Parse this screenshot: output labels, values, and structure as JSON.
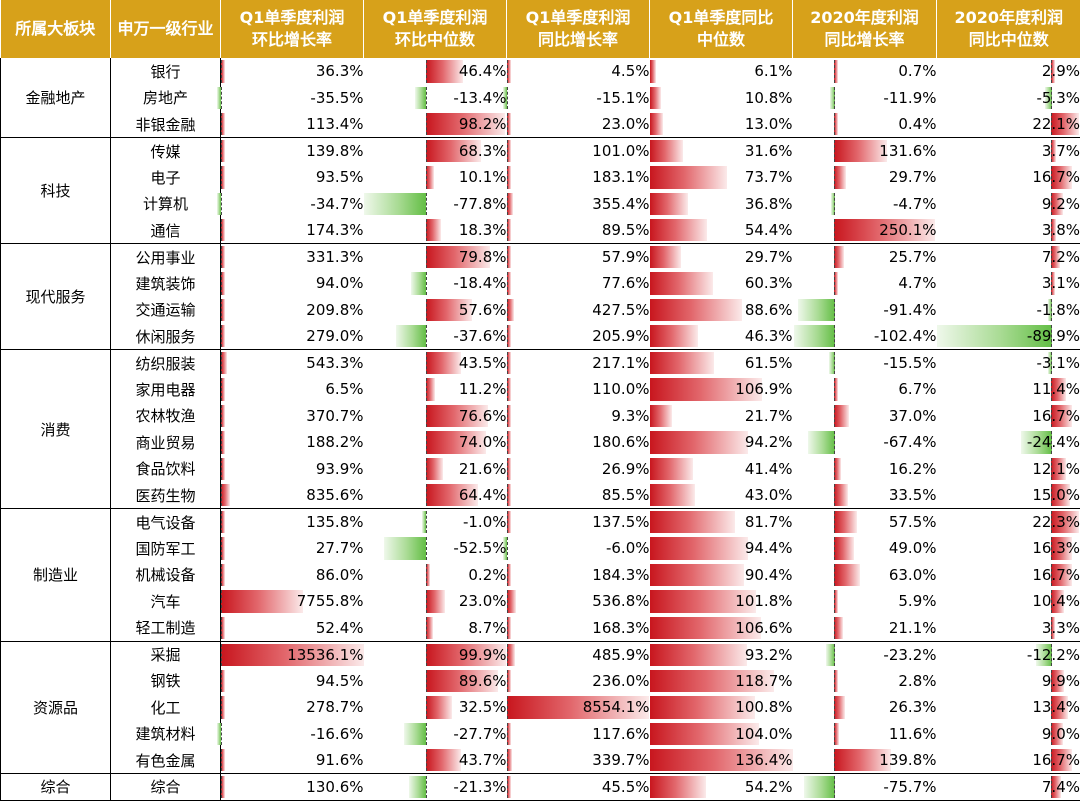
{
  "headers": [
    "所属大板块",
    "申万一级行业",
    "Q1单季度利润\n环比增长率",
    "Q1单季度利润\n环比中位数",
    "Q1单季度利润\n同比增长率",
    "Q1单季度同比\n中位数",
    "2020年度利润\n同比增长率",
    "2020年度利润\n同比中位数"
  ],
  "colors": {
    "header_bg": "#d7a11a",
    "positive_bar": "#c8161e",
    "negative_bar": "#63be45"
  },
  "groups": [
    {
      "sector": "金融地产",
      "rows": [
        {
          "industry": "银行",
          "values": [
            36.3,
            46.4,
            4.5,
            6.1,
            0.7,
            2.9
          ],
          "labels": [
            "36.3%",
            "46.4%",
            "4.5%",
            "6.1%",
            "0.7%",
            "2.9%"
          ]
        },
        {
          "industry": "房地产",
          "values": [
            -35.5,
            -13.4,
            -15.1,
            10.8,
            -11.9,
            -5.3
          ],
          "labels": [
            "-35.5%",
            "-13.4%",
            "-15.1%",
            "10.8%",
            "-11.9%",
            "-5.3%"
          ]
        },
        {
          "industry": "非银金融",
          "values": [
            113.4,
            98.2,
            23.0,
            13.0,
            0.4,
            22.1
          ],
          "labels": [
            "113.4%",
            "98.2%",
            "23.0%",
            "13.0%",
            "0.4%",
            "22.1%"
          ]
        }
      ]
    },
    {
      "sector": "科技",
      "rows": [
        {
          "industry": "传媒",
          "values": [
            139.8,
            68.3,
            101.0,
            31.6,
            131.6,
            3.7
          ],
          "labels": [
            "139.8%",
            "68.3%",
            "101.0%",
            "31.6%",
            "131.6%",
            "3.7%"
          ]
        },
        {
          "industry": "电子",
          "values": [
            93.5,
            10.1,
            183.1,
            73.7,
            29.7,
            16.7
          ],
          "labels": [
            "93.5%",
            "10.1%",
            "183.1%",
            "73.7%",
            "29.7%",
            "16.7%"
          ]
        },
        {
          "industry": "计算机",
          "values": [
            -34.7,
            -77.8,
            355.4,
            36.8,
            -4.7,
            9.2
          ],
          "labels": [
            "-34.7%",
            "-77.8%",
            "355.4%",
            "36.8%",
            "-4.7%",
            "9.2%"
          ]
        },
        {
          "industry": "通信",
          "values": [
            174.3,
            18.3,
            89.5,
            54.4,
            250.1,
            3.8
          ],
          "labels": [
            "174.3%",
            "18.3%",
            "89.5%",
            "54.4%",
            "250.1%",
            "3.8%"
          ]
        }
      ]
    },
    {
      "sector": "现代服务",
      "rows": [
        {
          "industry": "公用事业",
          "values": [
            331.3,
            79.8,
            57.9,
            29.7,
            25.7,
            7.2
          ],
          "labels": [
            "331.3%",
            "79.8%",
            "57.9%",
            "29.7%",
            "25.7%",
            "7.2%"
          ]
        },
        {
          "industry": "建筑装饰",
          "values": [
            94.0,
            -18.4,
            77.6,
            60.3,
            4.7,
            3.1
          ],
          "labels": [
            "94.0%",
            "-18.4%",
            "77.6%",
            "60.3%",
            "4.7%",
            "3.1%"
          ]
        },
        {
          "industry": "交通运输",
          "values": [
            209.8,
            57.6,
            427.5,
            88.6,
            -91.4,
            -1.8
          ],
          "labels": [
            "209.8%",
            "57.6%",
            "427.5%",
            "88.6%",
            "-91.4%",
            "-1.8%"
          ]
        },
        {
          "industry": "休闲服务",
          "values": [
            279.0,
            -37.6,
            205.9,
            46.3,
            -102.4,
            -89.9
          ],
          "labels": [
            "279.0%",
            "-37.6%",
            "205.9%",
            "46.3%",
            "-102.4%",
            "-89.9%"
          ]
        }
      ]
    },
    {
      "sector": "消费",
      "rows": [
        {
          "industry": "纺织服装",
          "values": [
            543.3,
            43.5,
            217.1,
            61.5,
            -15.5,
            -3.1
          ],
          "labels": [
            "543.3%",
            "43.5%",
            "217.1%",
            "61.5%",
            "-15.5%",
            "-3.1%"
          ]
        },
        {
          "industry": "家用电器",
          "values": [
            6.5,
            11.2,
            110.0,
            106.9,
            6.7,
            11.4
          ],
          "labels": [
            "6.5%",
            "11.2%",
            "110.0%",
            "106.9%",
            "6.7%",
            "11.4%"
          ]
        },
        {
          "industry": "农林牧渔",
          "values": [
            370.7,
            76.6,
            9.3,
            21.7,
            37.0,
            16.7
          ],
          "labels": [
            "370.7%",
            "76.6%",
            "9.3%",
            "21.7%",
            "37.0%",
            "16.7%"
          ]
        },
        {
          "industry": "商业贸易",
          "values": [
            188.2,
            74.0,
            180.6,
            94.2,
            -67.4,
            -24.4
          ],
          "labels": [
            "188.2%",
            "74.0%",
            "180.6%",
            "94.2%",
            "-67.4%",
            "-24.4%"
          ]
        },
        {
          "industry": "食品饮料",
          "values": [
            93.9,
            21.6,
            26.9,
            41.4,
            16.2,
            12.1
          ],
          "labels": [
            "93.9%",
            "21.6%",
            "26.9%",
            "41.4%",
            "16.2%",
            "12.1%"
          ]
        },
        {
          "industry": "医药生物",
          "values": [
            835.6,
            64.4,
            85.5,
            43.0,
            33.5,
            15.0
          ],
          "labels": [
            "835.6%",
            "64.4%",
            "85.5%",
            "43.0%",
            "33.5%",
            "15.0%"
          ]
        }
      ]
    },
    {
      "sector": "制造业",
      "rows": [
        {
          "industry": "电气设备",
          "values": [
            135.8,
            -1.0,
            137.5,
            81.7,
            57.5,
            22.3
          ],
          "labels": [
            "135.8%",
            "-1.0%",
            "137.5%",
            "81.7%",
            "57.5%",
            "22.3%"
          ]
        },
        {
          "industry": "国防军工",
          "values": [
            27.7,
            -52.5,
            -6.0,
            94.4,
            49.0,
            16.3
          ],
          "labels": [
            "27.7%",
            "-52.5%",
            "-6.0%",
            "94.4%",
            "49.0%",
            "16.3%"
          ]
        },
        {
          "industry": "机械设备",
          "values": [
            86.0,
            0.2,
            184.3,
            90.4,
            63.0,
            16.7
          ],
          "labels": [
            "86.0%",
            "0.2%",
            "184.3%",
            "90.4%",
            "63.0%",
            "16.7%"
          ]
        },
        {
          "industry": "汽车",
          "values": [
            7755.8,
            23.0,
            536.8,
            101.8,
            5.9,
            10.4
          ],
          "labels": [
            "7755.8%",
            "23.0%",
            "536.8%",
            "101.8%",
            "5.9%",
            "10.4%"
          ]
        },
        {
          "industry": "轻工制造",
          "values": [
            52.4,
            8.7,
            168.3,
            106.6,
            21.1,
            3.3
          ],
          "labels": [
            "52.4%",
            "8.7%",
            "168.3%",
            "106.6%",
            "21.1%",
            "3.3%"
          ]
        }
      ]
    },
    {
      "sector": "资源品",
      "rows": [
        {
          "industry": "采掘",
          "values": [
            13536.1,
            99.9,
            485.9,
            93.2,
            -23.2,
            -12.2
          ],
          "labels": [
            "13536.1%",
            "99.9%",
            "485.9%",
            "93.2%",
            "-23.2%",
            "-12.2%"
          ]
        },
        {
          "industry": "钢铁",
          "values": [
            94.5,
            89.6,
            236.0,
            118.7,
            2.8,
            9.9
          ],
          "labels": [
            "94.5%",
            "89.6%",
            "236.0%",
            "118.7%",
            "2.8%",
            "9.9%"
          ]
        },
        {
          "industry": "化工",
          "values": [
            278.7,
            32.5,
            8554.1,
            100.8,
            26.3,
            13.4
          ],
          "labels": [
            "278.7%",
            "32.5%",
            "8554.1%",
            "100.8%",
            "26.3%",
            "13.4%"
          ]
        },
        {
          "industry": "建筑材料",
          "values": [
            -16.6,
            -27.7,
            117.6,
            104.0,
            11.6,
            9.0
          ],
          "labels": [
            "-16.6%",
            "-27.7%",
            "117.6%",
            "104.0%",
            "11.6%",
            "9.0%"
          ]
        },
        {
          "industry": "有色金属",
          "values": [
            91.6,
            43.7,
            339.7,
            136.4,
            139.8,
            16.7
          ],
          "labels": [
            "91.6%",
            "43.7%",
            "339.7%",
            "136.4%",
            "139.8%",
            "16.7%"
          ]
        }
      ]
    },
    {
      "sector": "综合",
      "rows": [
        {
          "industry": "综合",
          "values": [
            130.6,
            -21.3,
            45.5,
            54.2,
            -75.7,
            7.4
          ],
          "labels": [
            "130.6%",
            "-21.3%",
            "45.5%",
            "54.2%",
            "-75.7%",
            "7.4%"
          ]
        }
      ]
    }
  ]
}
